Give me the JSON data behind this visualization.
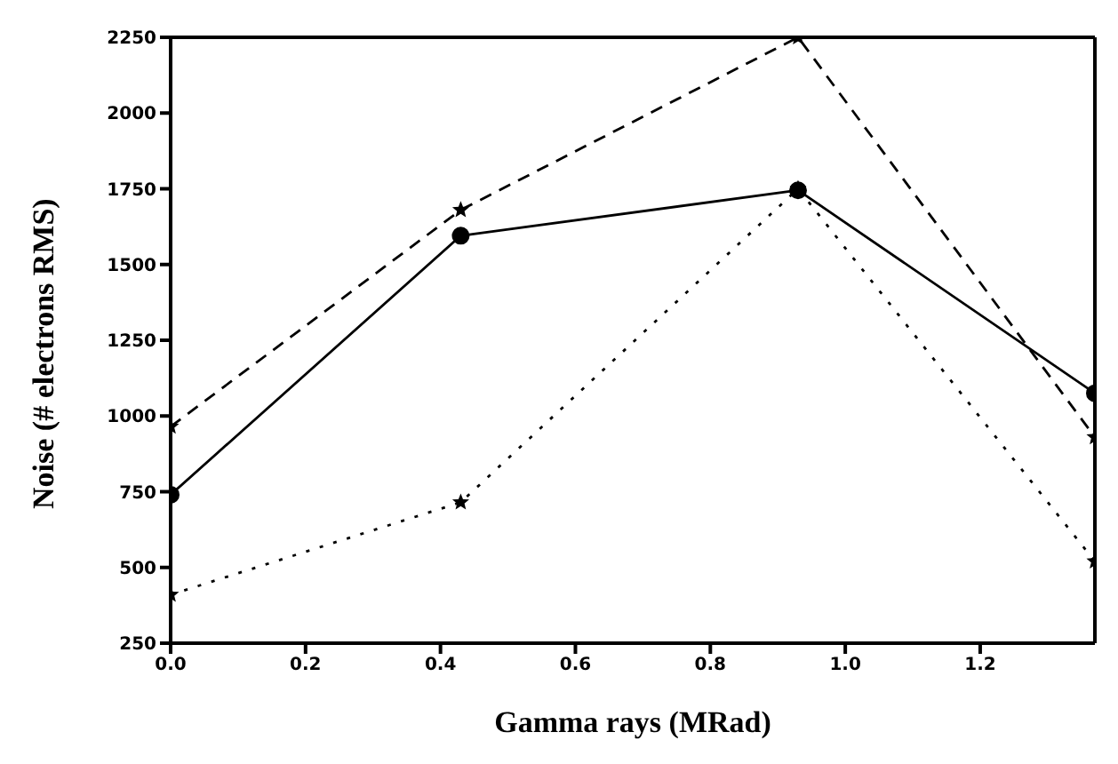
{
  "chart_data": {
    "type": "line",
    "xlabel": "Gamma rays (MRad)",
    "ylabel": "Noise (# electrons RMS)",
    "x": [
      0,
      0.43,
      0.93,
      1.37
    ],
    "series": [
      {
        "color": "#000000",
        "values": [
          740,
          1595,
          1745,
          1075
        ],
        "marker": "circle",
        "line_style": "solid"
      },
      {
        "color": "#000000",
        "values": [
          965,
          1680,
          2250,
          930
        ],
        "marker": "star",
        "line_style": "dashed"
      },
      {
        "color": "#000000",
        "values": [
          410,
          715,
          1750,
          520
        ],
        "marker": "star",
        "line_style": "dotted"
      }
    ],
    "xlim": [
      0,
      1.37
    ],
    "ylim": [
      250,
      2250
    ],
    "xticks": [
      {
        "value": 0,
        "label": "0.0"
      },
      {
        "value": 0.2,
        "label": "0.2"
      },
      {
        "value": 0.4,
        "label": "0.4"
      },
      {
        "value": 0.6,
        "label": "0.6"
      },
      {
        "value": 0.8,
        "label": "0.8"
      },
      {
        "value": 1,
        "label": "1.0"
      },
      {
        "value": 1.2,
        "label": "1.2"
      }
    ],
    "yticks": [
      250,
      500,
      750,
      1000,
      1250,
      1500,
      1750,
      2000,
      2250
    ],
    "grid": false,
    "legend": false
  }
}
